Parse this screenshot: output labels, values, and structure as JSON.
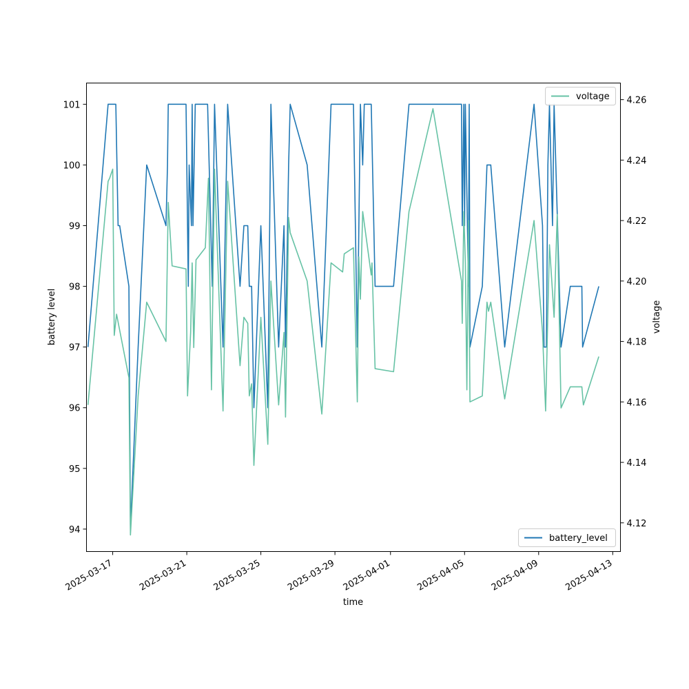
{
  "chart_data": {
    "type": "line",
    "xlabel": "time",
    "ylabel_left": "battery level",
    "ylabel_right": "voltage",
    "xlim": [
      "2025-03-15T14:00",
      "2025-04-13T10:00"
    ],
    "ylim_left": [
      93.63,
      101.35
    ],
    "ylim_right": [
      4.1105,
      4.2655
    ],
    "x_ticks": [
      "2025-03-17",
      "2025-03-21",
      "2025-03-25",
      "2025-03-29",
      "2025-04-01",
      "2025-04-05",
      "2025-04-09",
      "2025-04-13"
    ],
    "y_ticks_left": [
      94,
      95,
      96,
      97,
      98,
      99,
      100,
      101
    ],
    "y_ticks_right": [
      4.12,
      4.14,
      4.16,
      4.18,
      4.2,
      4.22,
      4.24,
      4.26
    ],
    "legend_left_position": "lower right",
    "legend_right_position": "upper right",
    "grid": false,
    "series": [
      {
        "name": "battery_level",
        "axis": "left",
        "color": "#1f77b4",
        "points": [
          [
            "2025-03-15T16:00",
            97
          ],
          [
            "2025-03-16T18:00",
            101
          ],
          [
            "2025-03-16T20:00",
            101
          ],
          [
            "2025-03-17T04:00",
            101
          ],
          [
            "2025-03-17T07:00",
            99
          ],
          [
            "2025-03-17T09:00",
            99
          ],
          [
            "2025-03-17T21:00",
            98
          ],
          [
            "2025-03-17T23:00",
            94
          ],
          [
            "2025-03-18T09:00",
            97
          ],
          [
            "2025-03-18T20:00",
            100
          ],
          [
            "2025-03-19T21:00",
            99
          ],
          [
            "2025-03-19T23:00",
            100
          ],
          [
            "2025-03-20T00:00",
            101
          ],
          [
            "2025-03-20T23:00",
            101
          ],
          [
            "2025-03-21T02:00",
            98
          ],
          [
            "2025-03-21T03:00",
            100
          ],
          [
            "2025-03-21T06:00",
            99
          ],
          [
            "2025-03-21T07:00",
            101
          ],
          [
            "2025-03-21T08:00",
            99
          ],
          [
            "2025-03-21T11:00",
            101
          ],
          [
            "2025-03-22T03:00",
            101
          ],
          [
            "2025-03-22T09:00",
            98
          ],
          [
            "2025-03-22T12:00",
            101
          ],
          [
            "2025-03-22T23:00",
            97
          ],
          [
            "2025-03-23T05:00",
            101
          ],
          [
            "2025-03-23T21:00",
            98
          ],
          [
            "2025-03-24T02:00",
            99
          ],
          [
            "2025-03-24T07:00",
            99
          ],
          [
            "2025-03-24T09:00",
            98
          ],
          [
            "2025-03-24T12:00",
            98
          ],
          [
            "2025-03-24T15:00",
            96
          ],
          [
            "2025-03-25T00:00",
            99
          ],
          [
            "2025-03-25T09:00",
            96
          ],
          [
            "2025-03-25T13:00",
            101
          ],
          [
            "2025-03-25T23:00",
            97
          ],
          [
            "2025-03-26T06:00",
            99
          ],
          [
            "2025-03-26T08:00",
            97
          ],
          [
            "2025-03-26T12:00",
            100
          ],
          [
            "2025-03-26T14:00",
            101
          ],
          [
            "2025-03-27T12:00",
            100
          ],
          [
            "2025-03-28T07:00",
            97
          ],
          [
            "2025-03-28T19:00",
            101
          ],
          [
            "2025-03-30T00:00",
            101
          ],
          [
            "2025-03-30T05:00",
            97
          ],
          [
            "2025-03-30T09:00",
            101
          ],
          [
            "2025-03-30T12:00",
            100
          ],
          [
            "2025-03-30T14:00",
            101
          ],
          [
            "2025-03-30T23:00",
            101
          ],
          [
            "2025-03-31T04:00",
            98
          ],
          [
            "2025-04-01T04:00",
            98
          ],
          [
            "2025-04-02T00:00",
            101
          ],
          [
            "2025-04-03T00:00",
            101
          ],
          [
            "2025-04-04T20:00",
            101
          ],
          [
            "2025-04-04T21:00",
            99
          ],
          [
            "2025-04-04T23:00",
            101
          ],
          [
            "2025-04-05T00:00",
            99
          ],
          [
            "2025-04-05T01:00",
            101
          ],
          [
            "2025-04-05T05:00",
            98
          ],
          [
            "2025-04-05T06:00",
            101
          ],
          [
            "2025-04-05T07:00",
            97
          ],
          [
            "2025-04-05T23:00",
            98
          ],
          [
            "2025-04-06T05:00",
            100
          ],
          [
            "2025-04-06T10:00",
            100
          ],
          [
            "2025-04-07T04:00",
            97
          ],
          [
            "2025-04-08T18:00",
            101
          ],
          [
            "2025-04-09T05:00",
            99
          ],
          [
            "2025-04-09T07:00",
            97
          ],
          [
            "2025-04-09T10:00",
            97
          ],
          [
            "2025-04-09T12:00",
            100
          ],
          [
            "2025-04-09T14:00",
            101
          ],
          [
            "2025-04-09T18:00",
            99
          ],
          [
            "2025-04-09T20:00",
            101
          ],
          [
            "2025-04-10T05:00",
            97
          ],
          [
            "2025-04-10T17:00",
            98
          ],
          [
            "2025-04-11T08:00",
            98
          ],
          [
            "2025-04-11T09:00",
            97
          ],
          [
            "2025-04-12T06:00",
            98
          ]
        ]
      },
      {
        "name": "voltage",
        "axis": "right",
        "color": "#66c2a5",
        "points": [
          [
            "2025-03-15T16:00",
            4.159
          ],
          [
            "2025-03-16T18:00",
            4.233
          ],
          [
            "2025-03-16T20:00",
            4.234
          ],
          [
            "2025-03-17T00:00",
            4.237
          ],
          [
            "2025-03-17T02:00",
            4.182
          ],
          [
            "2025-03-17T05:00",
            4.189
          ],
          [
            "2025-03-17T21:00",
            4.168
          ],
          [
            "2025-03-17T23:00",
            4.116
          ],
          [
            "2025-03-18T09:00",
            4.162
          ],
          [
            "2025-03-18T20:00",
            4.193
          ],
          [
            "2025-03-19T21:00",
            4.18
          ],
          [
            "2025-03-20T00:00",
            4.226
          ],
          [
            "2025-03-20T05:00",
            4.205
          ],
          [
            "2025-03-20T23:00",
            4.204
          ],
          [
            "2025-03-21T01:00",
            4.162
          ],
          [
            "2025-03-21T05:00",
            4.183
          ],
          [
            "2025-03-21T07:00",
            4.206
          ],
          [
            "2025-03-21T09:00",
            4.178
          ],
          [
            "2025-03-21T12:00",
            4.207
          ],
          [
            "2025-03-22T00:00",
            4.211
          ],
          [
            "2025-03-22T04:00",
            4.234
          ],
          [
            "2025-03-22T08:00",
            4.164
          ],
          [
            "2025-03-22T12:00",
            4.237
          ],
          [
            "2025-03-22T23:00",
            4.157
          ],
          [
            "2025-03-23T05:00",
            4.233
          ],
          [
            "2025-03-23T21:00",
            4.172
          ],
          [
            "2025-03-24T02:00",
            4.188
          ],
          [
            "2025-03-24T07:00",
            4.186
          ],
          [
            "2025-03-24T09:00",
            4.162
          ],
          [
            "2025-03-24T12:00",
            4.166
          ],
          [
            "2025-03-24T15:00",
            4.139
          ],
          [
            "2025-03-25T00:00",
            4.188
          ],
          [
            "2025-03-25T09:00",
            4.146
          ],
          [
            "2025-03-25T13:00",
            4.2
          ],
          [
            "2025-03-25T23:00",
            4.159
          ],
          [
            "2025-03-26T06:00",
            4.183
          ],
          [
            "2025-03-26T08:00",
            4.155
          ],
          [
            "2025-03-26T12:00",
            4.221
          ],
          [
            "2025-03-26T14:00",
            4.216
          ],
          [
            "2025-03-27T12:00",
            4.2
          ],
          [
            "2025-03-28T07:00",
            4.156
          ],
          [
            "2025-03-28T19:00",
            4.206
          ],
          [
            "2025-03-29T10:00",
            4.203
          ],
          [
            "2025-03-29T12:00",
            4.209
          ],
          [
            "2025-03-30T00:00",
            4.211
          ],
          [
            "2025-03-30T05:00",
            4.16
          ],
          [
            "2025-03-30T07:00",
            4.208
          ],
          [
            "2025-03-30T09:00",
            4.194
          ],
          [
            "2025-03-30T12:00",
            4.223
          ],
          [
            "2025-03-30T23:00",
            4.202
          ],
          [
            "2025-03-31T00:00",
            4.206
          ],
          [
            "2025-03-31T04:00",
            4.171
          ],
          [
            "2025-04-01T04:00",
            4.17
          ],
          [
            "2025-04-02T00:00",
            4.223
          ],
          [
            "2025-04-03T07:00",
            4.257
          ],
          [
            "2025-04-04T20:00",
            4.2
          ],
          [
            "2025-04-04T21:00",
            4.186
          ],
          [
            "2025-04-04T23:00",
            4.223
          ],
          [
            "2025-04-05T01:00",
            4.206
          ],
          [
            "2025-04-05T03:00",
            4.164
          ],
          [
            "2025-04-05T05:00",
            4.22
          ],
          [
            "2025-04-05T07:00",
            4.16
          ],
          [
            "2025-04-05T23:00",
            4.162
          ],
          [
            "2025-04-06T05:00",
            4.193
          ],
          [
            "2025-04-06T07:00",
            4.19
          ],
          [
            "2025-04-06T10:00",
            4.193
          ],
          [
            "2025-04-07T04:00",
            4.161
          ],
          [
            "2025-04-08T18:00",
            4.22
          ],
          [
            "2025-04-09T05:00",
            4.183
          ],
          [
            "2025-04-09T09:00",
            4.157
          ],
          [
            "2025-04-09T14:00",
            4.212
          ],
          [
            "2025-04-09T20:00",
            4.188
          ],
          [
            "2025-04-10T00:00",
            4.222
          ],
          [
            "2025-04-10T05:00",
            4.158
          ],
          [
            "2025-04-10T17:00",
            4.165
          ],
          [
            "2025-04-11T08:00",
            4.165
          ],
          [
            "2025-04-11T10:00",
            4.159
          ],
          [
            "2025-04-12T06:00",
            4.175
          ]
        ]
      }
    ]
  }
}
